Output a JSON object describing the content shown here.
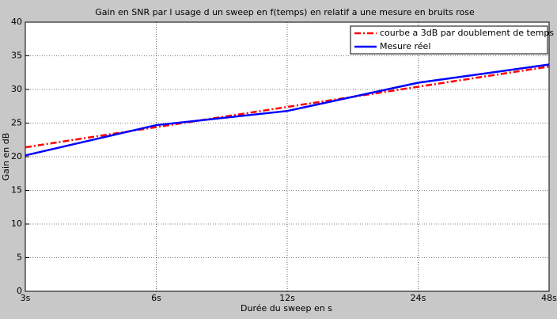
{
  "chart_data": {
    "type": "line",
    "title": "Gain en SNR par l usage d un sweep en f(temps) en relatif a une mesure en bruits rose",
    "x_label": "Durée du sweep en s",
    "y_label": "Gain en dB",
    "categories": [
      "3s",
      "6s",
      "12s",
      "24s",
      "48s"
    ],
    "series": [
      {
        "name": "courbe a 3dB par doublement de temps",
        "color": "#ff0000",
        "dash": "dashdot",
        "values": [
          21.4,
          24.4,
          27.4,
          30.4,
          33.4
        ]
      },
      {
        "name": "Mesure réel",
        "color": "#0000ff",
        "dash": "solid",
        "values": [
          20.2,
          24.7,
          26.8,
          31.0,
          33.7
        ]
      }
    ],
    "ylim": [
      0,
      40
    ],
    "yticks": [
      0,
      5,
      10,
      15,
      20,
      25,
      30,
      35,
      40
    ],
    "grid": true,
    "legend": "upper right"
  }
}
